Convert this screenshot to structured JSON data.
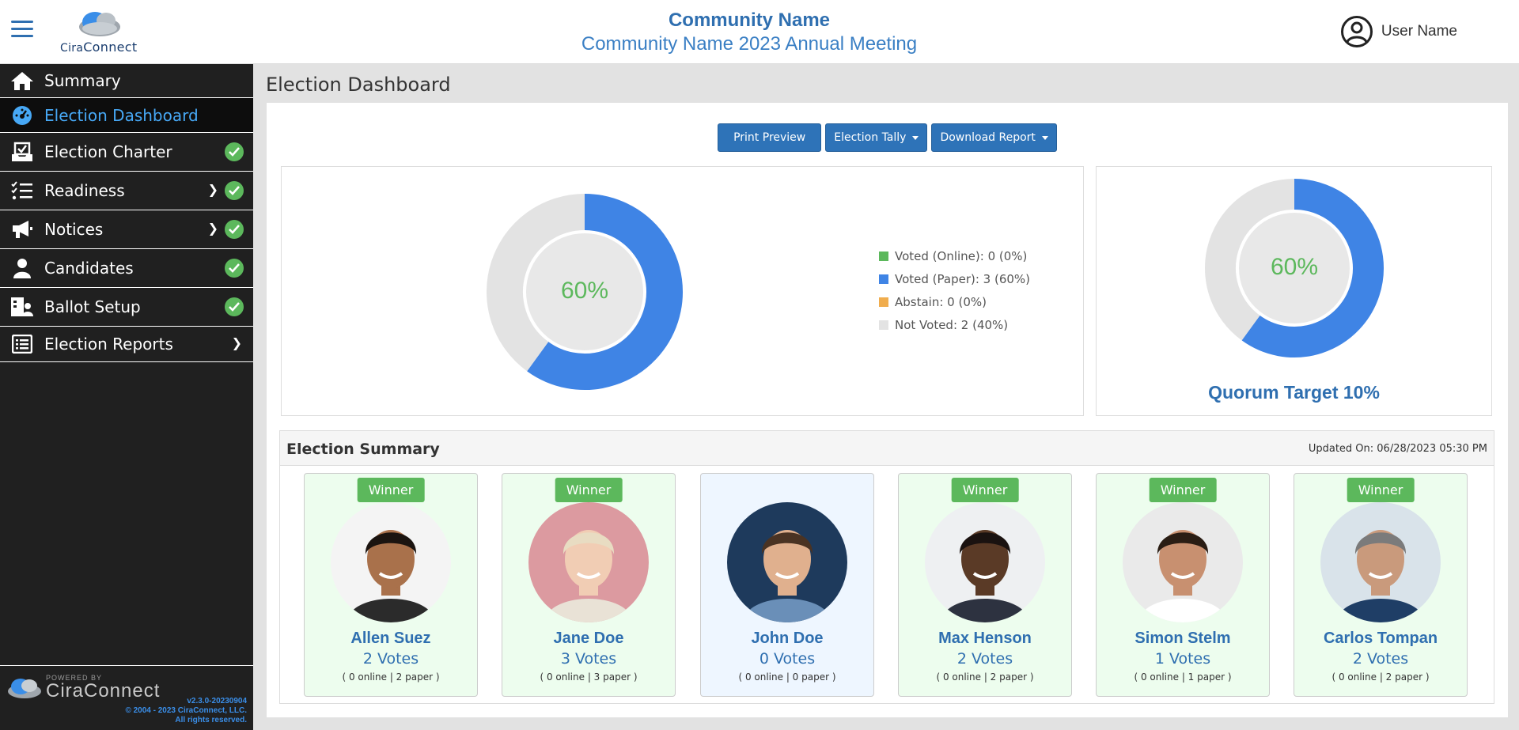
{
  "header": {
    "logo_text_a": "Cira",
    "logo_text_b": "Connect",
    "title": "Community Name",
    "subtitle": "Community Name 2023 Annual Meeting",
    "user_name": "User Name"
  },
  "sidebar": {
    "items": [
      {
        "label": "Summary",
        "icon": "home-icon"
      },
      {
        "label": "Election Dashboard",
        "icon": "dashboard-gauge-icon"
      },
      {
        "label": "Election Charter",
        "icon": "inbox-tray-icon"
      },
      {
        "label": "Readiness",
        "icon": "checklist-icon"
      },
      {
        "label": "Notices",
        "icon": "megaphone-icon"
      },
      {
        "label": "Candidates",
        "icon": "person-icon"
      },
      {
        "label": "Ballot Setup",
        "icon": "ballot-user-icon"
      },
      {
        "label": "Election Reports",
        "icon": "list-icon"
      }
    ],
    "footer": {
      "powered_by": "POWERED BY",
      "brand": "CiraConnect",
      "version": "v2.3.0-20230904",
      "copyright": "© 2004 - 2023 CiraConnect, LLC.",
      "rights": "All rights reserved."
    }
  },
  "main": {
    "page_title": "Election Dashboard",
    "toolbar": {
      "print_preview": "Print Preview",
      "election_tally": "Election Tally",
      "download_report": "Download Report"
    },
    "participation": {
      "center_label": "60%",
      "legend": [
        {
          "label": "Voted (Online): 0 (0%)",
          "color": "#5cb85c"
        },
        {
          "label": "Voted (Paper): 3 (60%)",
          "color": "#3f84e5"
        },
        {
          "label": "Abstain: 0 (0%)",
          "color": "#f0ad4e"
        },
        {
          "label": "Not Voted: 2 (40%)",
          "color": "#e3e3e3"
        }
      ]
    },
    "quorum": {
      "center_label": "60%",
      "target_label": "Quorum Target 10%"
    },
    "summary": {
      "title": "Election Summary",
      "updated": "Updated On: 06/28/2023 05:30 PM",
      "winner_label": "Winner",
      "candidates": [
        {
          "name": "Allen Suez",
          "votes": "2 Votes",
          "breakdown": "( 0 online | 2 paper )",
          "winner": true
        },
        {
          "name": "Jane Doe",
          "votes": "3 Votes",
          "breakdown": "( 0 online | 3 paper )",
          "winner": true
        },
        {
          "name": "John Doe",
          "votes": "0 Votes",
          "breakdown": "( 0 online | 0 paper )",
          "winner": false
        },
        {
          "name": "Max Henson",
          "votes": "2 Votes",
          "breakdown": "( 0 online | 2 paper )",
          "winner": true
        },
        {
          "name": "Simon Stelm",
          "votes": "1 Votes",
          "breakdown": "( 0 online | 1 paper )",
          "winner": true
        },
        {
          "name": "Carlos Tompan",
          "votes": "2 Votes",
          "breakdown": "( 0 online | 2 paper )",
          "winner": true
        }
      ]
    }
  },
  "chart_data": [
    {
      "type": "pie",
      "categories": [
        "Voted (Online)",
        "Voted (Paper)",
        "Abstain",
        "Not Voted"
      ],
      "values": [
        0,
        3,
        0,
        2
      ],
      "title": ""
    },
    {
      "type": "pie",
      "categories": [
        "Voted",
        "Not Voted"
      ],
      "values": [
        60,
        40
      ],
      "title": ""
    }
  ]
}
